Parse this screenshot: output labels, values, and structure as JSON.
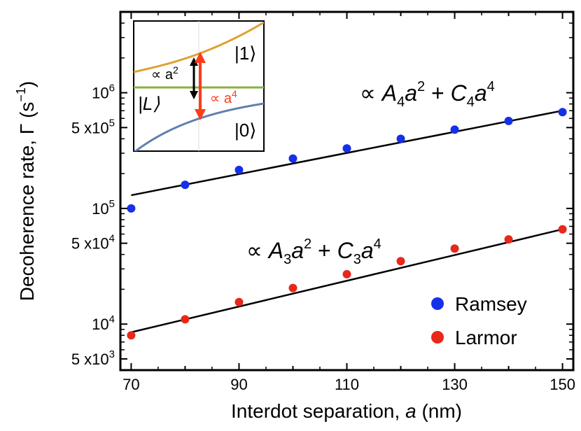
{
  "chart_data": {
    "type": "scatter",
    "title": "",
    "xlabel": "Interdot separation,",
    "xlabel_var": "a",
    "xlabel_unit": "(nm)",
    "ylabel": "Decoherence rate,  Γ (s",
    "ylabel_sup": "−1",
    "ylabel_close": ")",
    "yscale": "log",
    "xlim": [
      68,
      152
    ],
    "ylim": [
      4000,
      5000000
    ],
    "x_ticks": [
      70,
      90,
      110,
      130,
      150
    ],
    "x_tick_labels": [
      "70",
      "90",
      "110",
      "130",
      "150"
    ],
    "y_ticks": [
      {
        "value": 5000,
        "mant": "5 x10",
        "exp": "3"
      },
      {
        "value": 10000,
        "mant": "10",
        "exp": "4"
      },
      {
        "value": 50000,
        "mant": "5 x10",
        "exp": "4"
      },
      {
        "value": 100000,
        "mant": "10",
        "exp": "5"
      },
      {
        "value": 500000,
        "mant": "5 x10",
        "exp": "5"
      },
      {
        "value": 1000000,
        "mant": "10",
        "exp": "6"
      }
    ],
    "series": [
      {
        "name": "Ramsey",
        "color": "#1530e8",
        "x": [
          70,
          80,
          90,
          100,
          110,
          120,
          130,
          140,
          150
        ],
        "values": [
          100000,
          160000,
          215000,
          270000,
          330000,
          400000,
          480000,
          570000,
          680000
        ],
        "fit_x": [
          70,
          150
        ],
        "fit_values": [
          130000,
          700000
        ],
        "annotation": {
          "prefix": "∝ ",
          "A": "A",
          "Asub": "4",
          "a1": "a",
          "p1": "2",
          "plus": " + ",
          "C": "C",
          "Csub": "4",
          "a2": "a",
          "p2": "4"
        }
      },
      {
        "name": "Larmor",
        "color": "#e8281a",
        "x": [
          70,
          80,
          90,
          100,
          110,
          120,
          130,
          140,
          150
        ],
        "values": [
          8000,
          11000,
          15500,
          20500,
          27000,
          35000,
          45000,
          54000,
          66000
        ],
        "fit_x": [
          70,
          150
        ],
        "fit_values": [
          8500,
          66000
        ],
        "annotation": {
          "prefix": "∝ ",
          "A": "A",
          "Asub": "3",
          "a1": "a",
          "p1": "2",
          "plus": " + ",
          "C": "C",
          "Csub": "3",
          "a2": "a",
          "p2": "4"
        }
      }
    ],
    "legend_position": "bottom-right",
    "inset": {
      "ket1": "|1⟩",
      "ketL": "|L⟩",
      "ket0": "|0⟩",
      "label_black": "∝ a",
      "label_black_sup": "2",
      "label_red": "∝ a",
      "label_red_sup": "4",
      "colors": {
        "upper": "#e0a030",
        "middle": "#8ab040",
        "lower": "#5f80b0",
        "arrow_black": "#000000",
        "arrow_red": "#ff3b1a"
      }
    }
  }
}
